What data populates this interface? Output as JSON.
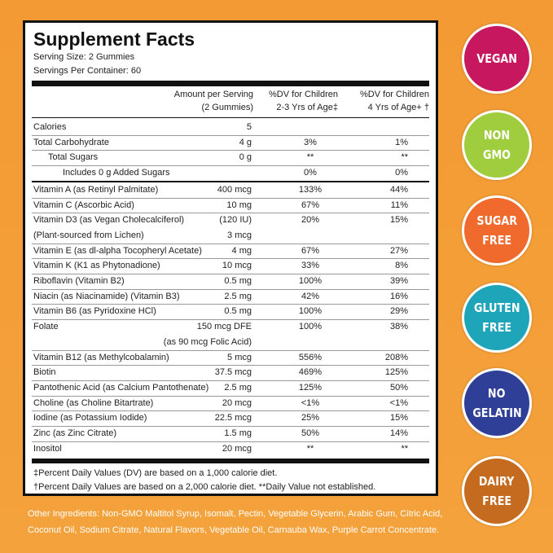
{
  "header": {
    "title": "Supplement Facts",
    "serving_size": "Serving Size: 2 Gummies",
    "servings_per_container": "Servings Per Container: 60"
  },
  "table": {
    "columns": [
      [
        "Amount per Serving",
        "(2 Gummies)"
      ],
      [
        "%DV for Children",
        "2-3 Yrs of Age‡"
      ],
      [
        "%DV for Children",
        "4 Yrs of Age+ †"
      ]
    ],
    "rows": [
      {
        "name": [
          "Calories"
        ],
        "amount": [
          "5"
        ],
        "dv1": "",
        "dv2": "",
        "indent": 0
      },
      {
        "name": [
          "Total Carbohydrate"
        ],
        "amount": [
          "4 g"
        ],
        "dv1": "3%",
        "dv2": "1%",
        "indent": 0
      },
      {
        "name": [
          "Total Sugars"
        ],
        "amount": [
          "0 g"
        ],
        "dv1": "**",
        "dv2": "**",
        "indent": 1
      },
      {
        "name": [
          "Includes 0 g Added Sugars"
        ],
        "amount": [
          ""
        ],
        "dv1": "0%",
        "dv2": "0%",
        "indent": 2
      },
      {
        "name": [
          "Vitamin A (as Retinyl Palmitate)"
        ],
        "amount": [
          "400 mcg"
        ],
        "dv1": "133%",
        "dv2": "44%",
        "indent": 0
      },
      {
        "name": [
          "Vitamin C (Ascorbic Acid)"
        ],
        "amount": [
          "10 mg"
        ],
        "dv1": "67%",
        "dv2": "11%",
        "indent": 0
      },
      {
        "name": [
          "Vitamin D3 (as Vegan Cholecalciferol)",
          "(Plant-sourced from Lichen)"
        ],
        "amount": [
          "(120 IU)",
          "3 mcg"
        ],
        "dv1": "20%",
        "dv2": "15%",
        "indent": 0
      },
      {
        "name": [
          "Vitamin E (as dl-alpha Tocopheryl Acetate)"
        ],
        "amount": [
          "4 mg"
        ],
        "dv1": "67%",
        "dv2": "27%",
        "indent": 0
      },
      {
        "name": [
          "Vitamin K (K1 as Phytonadione)"
        ],
        "amount": [
          "10 mcg"
        ],
        "dv1": "33%",
        "dv2": "8%",
        "indent": 0
      },
      {
        "name": [
          "Riboflavin (Vitamin B2)"
        ],
        "amount": [
          "0.5 mg"
        ],
        "dv1": "100%",
        "dv2": "39%",
        "indent": 0
      },
      {
        "name": [
          "Niacin (as Niacinamide) (Vitamin B3)"
        ],
        "amount": [
          "2.5 mg"
        ],
        "dv1": "42%",
        "dv2": "16%",
        "indent": 0
      },
      {
        "name": [
          "Vitamin B6 (as Pyridoxine HCl)"
        ],
        "amount": [
          "0.5 mg"
        ],
        "dv1": "100%",
        "dv2": "29%",
        "indent": 0
      },
      {
        "name": [
          "Folate",
          ""
        ],
        "amount": [
          "150 mcg DFE",
          "(as 90 mcg Folic Acid)"
        ],
        "dv1": "100%",
        "dv2": "38%",
        "indent": 0
      },
      {
        "name": [
          "Vitamin B12 (as Methylcobalamin)"
        ],
        "amount": [
          "5 mcg"
        ],
        "dv1": "556%",
        "dv2": "208%",
        "indent": 0
      },
      {
        "name": [
          "Biotin"
        ],
        "amount": [
          "37.5 mcg"
        ],
        "dv1": "469%",
        "dv2": "125%",
        "indent": 0
      },
      {
        "name": [
          "Pantothenic Acid (as Calcium Pantothenate)"
        ],
        "amount": [
          "2.5 mg"
        ],
        "dv1": "125%",
        "dv2": "50%",
        "indent": 0
      },
      {
        "name": [
          "Choline (as Choline Bitartrate)"
        ],
        "amount": [
          "20 mcg"
        ],
        "dv1": "<1%",
        "dv2": "<1%",
        "indent": 0
      },
      {
        "name": [
          "Iodine (as Potassium Iodide)"
        ],
        "amount": [
          "22.5 mcg"
        ],
        "dv1": "25%",
        "dv2": "15%",
        "indent": 0
      },
      {
        "name": [
          "Zinc (as Zinc Citrate)"
        ],
        "amount": [
          "1.5 mg"
        ],
        "dv1": "50%",
        "dv2": "14%",
        "indent": 0
      },
      {
        "name": [
          "Inositol"
        ],
        "amount": [
          "20 mcg"
        ],
        "dv1": "**",
        "dv2": "**",
        "indent": 0
      }
    ]
  },
  "footnotes": [
    "‡Percent Daily Values (DV) are based on a 1,000 calorie diet.",
    "†Percent Daily Values are based on a 2,000 calorie diet.     **Daily Value not established."
  ],
  "ingredients": [
    "Other Ingredients: Non-GMO Maltitol Syrup, Isomalt, Pectin, Vegetable Glycerin, Arabic Gum, Citric Acid,",
    "Coconut Oil, Sodium Citrate, Natural Flavors, Vegetable Oil, Carnauba Wax, Purple Carrot Concentrate."
  ],
  "badges": [
    {
      "lines": [
        "VEGAN"
      ],
      "color": "#c7175f"
    },
    {
      "lines": [
        "NON",
        "GMO"
      ],
      "color": "#9fcd3e"
    },
    {
      "lines": [
        "SUGAR",
        "FREE"
      ],
      "color": "#ef6a2c"
    },
    {
      "lines": [
        "GLUTEN",
        "FREE"
      ],
      "color": "#1ea5b9"
    },
    {
      "lines": [
        "NO",
        "GELATIN"
      ],
      "color": "#2f3f97"
    },
    {
      "lines": [
        "DAIRY",
        "FREE"
      ],
      "color": "#c56b1f"
    }
  ]
}
